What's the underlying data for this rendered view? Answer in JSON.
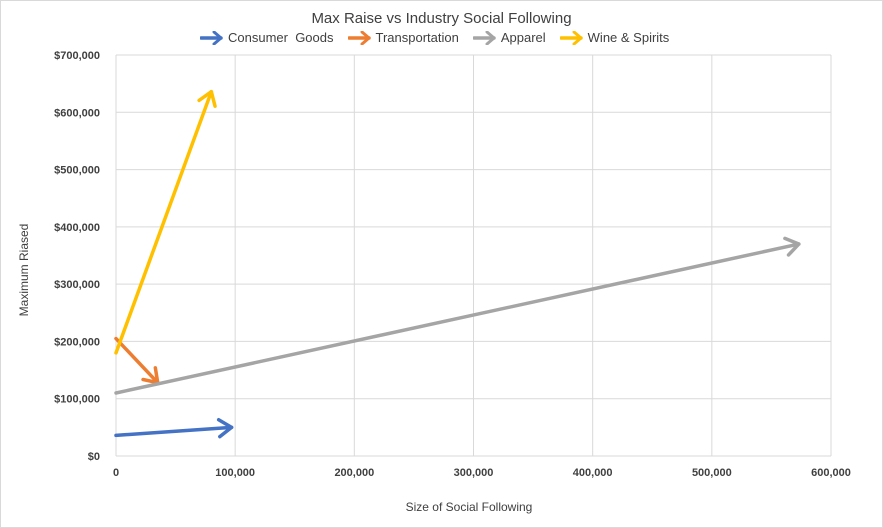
{
  "chart_data": {
    "type": "line",
    "title": "Max Raise vs Industry Social Following",
    "xlabel": "Size of Social Following",
    "ylabel": "Maximum Riased",
    "xlim": [
      0,
      600000
    ],
    "ylim": [
      0,
      700000
    ],
    "x_ticks": [
      "0",
      "100,000",
      "200,000",
      "300,000",
      "400,000",
      "500,000",
      "600,000"
    ],
    "y_ticks": [
      "$0",
      "$100,000",
      "$200,000",
      "$300,000",
      "$400,000",
      "$500,000",
      "$600,000",
      "$700,000"
    ],
    "grid": true,
    "legend_position": "top",
    "series": [
      {
        "name": "Consumer  Goods",
        "color": "#4472c4",
        "x": [
          0,
          97000
        ],
        "y": [
          36000,
          50000
        ]
      },
      {
        "name": "Transportation",
        "color": "#ed7d31",
        "x": [
          0,
          35000
        ],
        "y": [
          205000,
          128000
        ]
      },
      {
        "name": "Apparel",
        "color": "#a5a5a5",
        "x": [
          0,
          573000
        ],
        "y": [
          110000,
          370000
        ]
      },
      {
        "name": "Wine & Spirits",
        "color": "#ffc000",
        "x": [
          0,
          80000
        ],
        "y": [
          180000,
          636000
        ]
      }
    ]
  }
}
